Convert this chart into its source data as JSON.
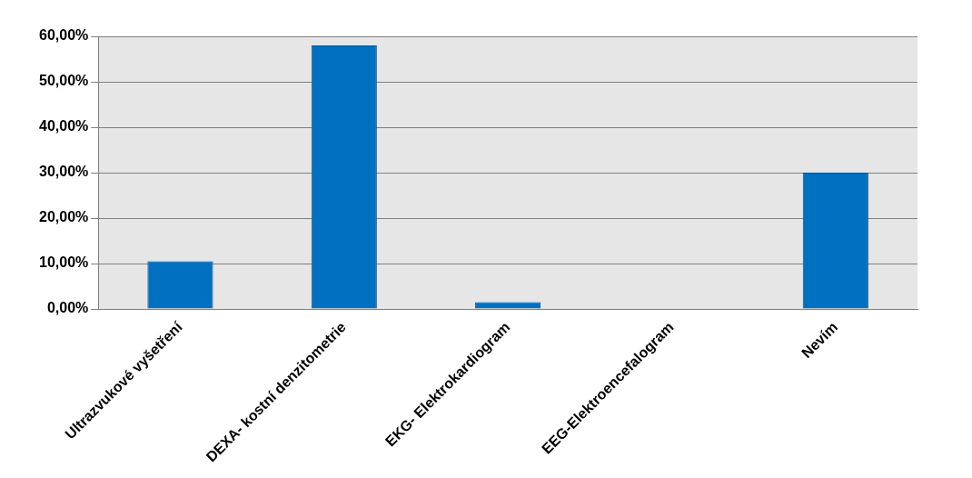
{
  "chart_data": {
    "type": "bar",
    "categories": [
      "Ultrazvukové vyšetření",
      "DEXA- kostní denzitometrie",
      "EKG- Elektrokardiogram",
      "EEG-Elektroencefalogram",
      "Nevím"
    ],
    "values": [
      10.5,
      58,
      1.5,
      0,
      30
    ],
    "color": "#0070c0",
    "ylim": [
      0,
      60
    ],
    "yticks": [
      {
        "value": 0,
        "label": "0,00%"
      },
      {
        "value": 10,
        "label": "10,00%"
      },
      {
        "value": 20,
        "label": "20,00%"
      },
      {
        "value": 30,
        "label": "30,00%"
      },
      {
        "value": 40,
        "label": "40,00%"
      },
      {
        "value": 50,
        "label": "50,00%"
      },
      {
        "value": 60,
        "label": "60,00%"
      }
    ],
    "grid": "y"
  }
}
